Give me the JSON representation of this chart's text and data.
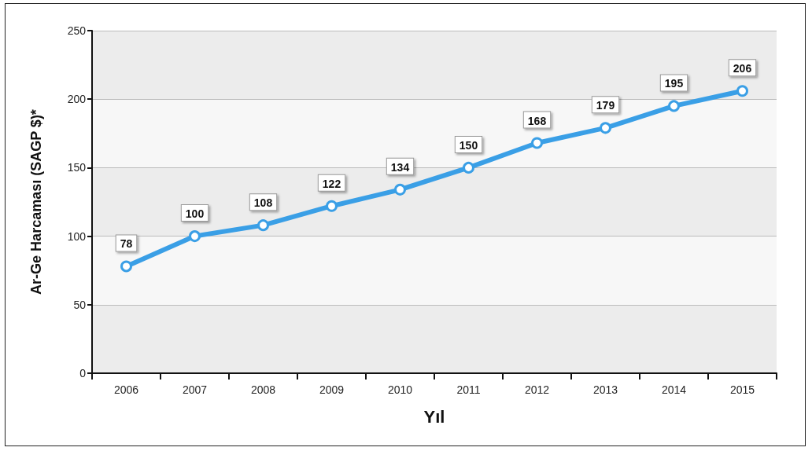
{
  "chart_data": {
    "type": "line",
    "xlabel": "Yıl",
    "ylabel": "Ar-Ge Harcaması (SAGP $)*",
    "categories": [
      "2006",
      "2007",
      "2008",
      "2009",
      "2010",
      "2011",
      "2012",
      "2013",
      "2014",
      "2015"
    ],
    "series": [
      {
        "color": "#3a9fe6",
        "values": [
          78,
          100,
          108,
          122,
          134,
          150,
          168,
          179,
          195,
          206
        ]
      }
    ],
    "ylim": [
      0,
      250
    ],
    "yticks": [
      0,
      50,
      100,
      150,
      200,
      250
    ],
    "grid": "y",
    "marker": "circle",
    "line_style": "solid",
    "data_labels": true
  }
}
